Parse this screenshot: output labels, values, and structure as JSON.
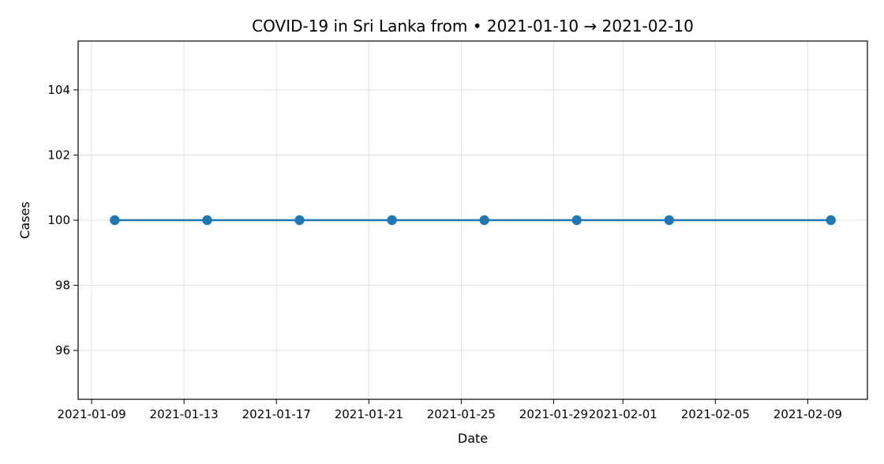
{
  "chart_data": {
    "type": "line",
    "title": "COVID-19 in Sri Lanka from • 2021-01-10 → 2021-02-10",
    "xlabel": "Date",
    "ylabel": "Cases",
    "x": [
      "2021-01-10",
      "2021-01-14",
      "2021-01-18",
      "2021-01-22",
      "2021-01-26",
      "2021-01-30",
      "2021-02-03",
      "2021-02-10"
    ],
    "series": [
      {
        "values": [
          100,
          100,
          100,
          100,
          100,
          100,
          100,
          100
        ],
        "color": "#1f77b4",
        "marker": "circle"
      }
    ],
    "xlim": [
      "2021-01-08 10:00",
      "2021-02-11 14:00"
    ],
    "ylim": [
      94.5,
      105.5
    ],
    "x_ticks": [
      "2021-01-09",
      "2021-01-13",
      "2021-01-17",
      "2021-01-21",
      "2021-01-25",
      "2021-01-29",
      "2021-02-01",
      "2021-02-05",
      "2021-02-09"
    ],
    "y_ticks": [
      96,
      98,
      100,
      102,
      104
    ],
    "grid": true,
    "legend": "none"
  }
}
